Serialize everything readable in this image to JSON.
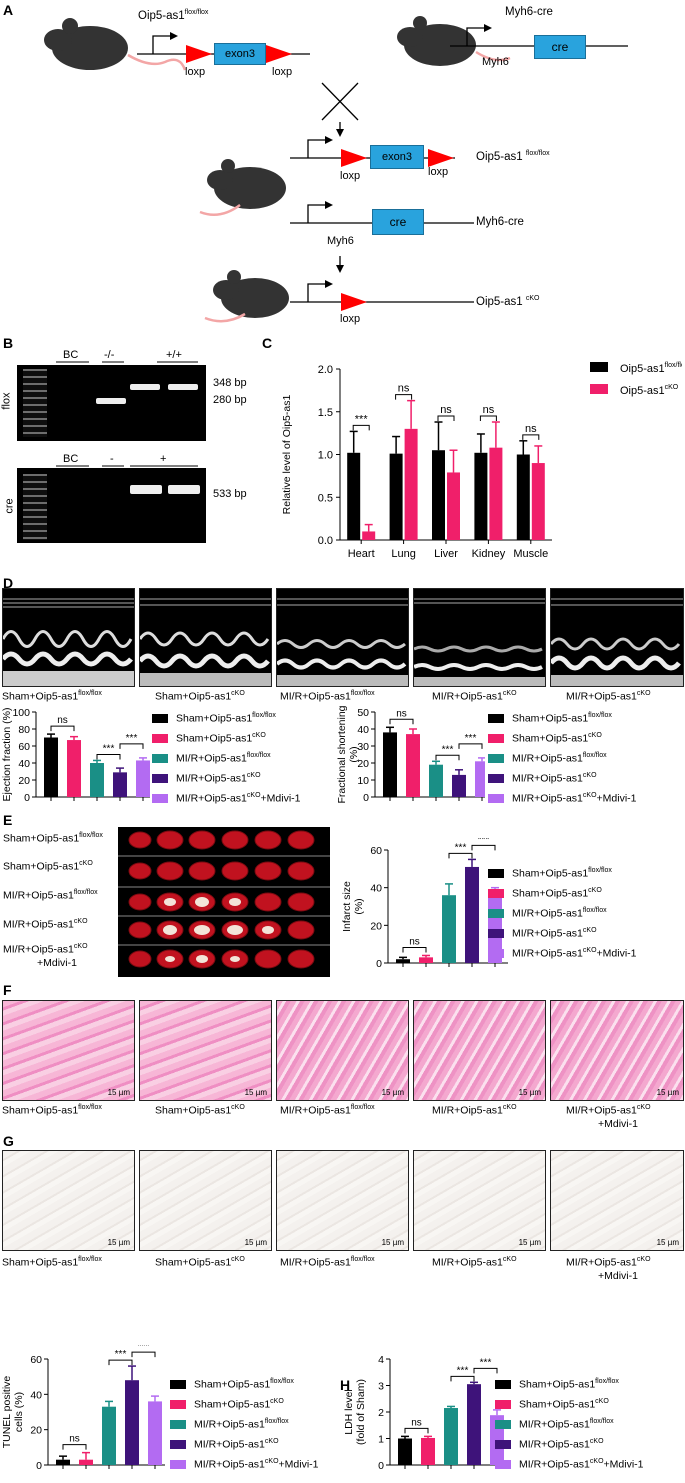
{
  "panels": {
    "A": "A",
    "B": "B",
    "C": "C",
    "D": "D",
    "E": "E",
    "F": "F",
    "G": "G",
    "H": "H"
  },
  "panelA": {
    "flox_title": "Oip5-as1",
    "flox_sup": "flox/flox",
    "cre_title": "Myh6-cre",
    "exon": "exon3",
    "loxp": "loxp",
    "cre": "cre",
    "myh6": "Myh6",
    "row1_label": "Oip5-as1",
    "row1_sup": "flox/flox",
    "row2_label": "Myh6-cre",
    "row3_label": "Oip5-as1",
    "row3_sup": "cKO"
  },
  "panelB": {
    "flox_lanes": [
      "BC",
      "-/-",
      "+/+"
    ],
    "cre_lanes": [
      "BC",
      "-",
      "+"
    ],
    "flox_label": "flox",
    "cre_label": "cre",
    "bands_flox": [
      "348 bp",
      "280 bp"
    ],
    "bands_cre": [
      "533 bp"
    ]
  },
  "legend": {
    "sham_flox": "Sham+Oip5-as1",
    "sham_cko": "Sham+Oip5-as1",
    "mir_flox": "MI/R+Oip5-as1",
    "mir_cko": "MI/R+Oip5-as1",
    "mir_cko_m": "MI/R+Oip5-as1",
    "sup_flox": "flox/flox",
    "sup_cko": "cKO",
    "mdivi": "+Mdivi-1"
  },
  "colors": {
    "black": "#000000",
    "pink": "#f01f6a",
    "teal": "#1a8f86",
    "purple": "#3e137a",
    "violet": "#b36bf2"
  },
  "chart_data": [
    {
      "type": "bar",
      "panel": "C",
      "title": "",
      "ylabel": "Relative level of Oip5-as1",
      "categories": [
        "Heart",
        "Lung",
        "Liver",
        "Kidney",
        "Muscle"
      ],
      "ylim": [
        0,
        2.0
      ],
      "yticks": [
        "0.0",
        "0.5",
        "1.0",
        "1.5",
        "2.0"
      ],
      "series": [
        {
          "name": "Oip5-as1",
          "sup": "flox/flox",
          "values": [
            1.02,
            1.01,
            1.05,
            1.02,
            1.0
          ],
          "errors": [
            0.25,
            0.2,
            0.33,
            0.22,
            0.16
          ],
          "color": "#000000"
        },
        {
          "name": "Oip5-as1",
          "sup": "cKO",
          "values": [
            0.1,
            1.3,
            0.79,
            1.08,
            0.9
          ],
          "errors": [
            0.08,
            0.33,
            0.26,
            0.3,
            0.2
          ],
          "color": "#f01f6a"
        }
      ],
      "annotations": [
        "***",
        "ns",
        "ns",
        "ns",
        "ns"
      ]
    },
    {
      "type": "bar",
      "panel": "D-left",
      "ylabel": "Ejection fraction (%)",
      "ylim": [
        0,
        100
      ],
      "yticks": [
        "0",
        "20",
        "40",
        "60",
        "80",
        "100"
      ],
      "values": [
        70,
        67,
        40,
        29,
        43
      ],
      "errors": [
        4,
        4,
        3,
        5,
        3
      ],
      "annotations": [
        "ns",
        "***",
        "***"
      ]
    },
    {
      "type": "bar",
      "panel": "D-right",
      "ylabel": "Fractional shortening (%)",
      "ylim": [
        0,
        50
      ],
      "yticks": [
        "0",
        "10",
        "20",
        "30",
        "40",
        "50"
      ],
      "values": [
        38,
        37,
        19,
        13,
        21
      ],
      "errors": [
        3,
        3,
        2,
        3,
        2
      ],
      "annotations": [
        "ns",
        "***",
        "***"
      ]
    },
    {
      "type": "bar",
      "panel": "E",
      "ylabel": "Infarct size (%)",
      "ylim": [
        0,
        60
      ],
      "yticks": [
        "0",
        "20",
        "40",
        "60"
      ],
      "values": [
        2,
        3,
        36,
        51,
        36
      ],
      "errors": [
        1,
        1,
        6,
        4,
        4
      ],
      "annotations": [
        "ns",
        "***",
        "***"
      ]
    },
    {
      "type": "bar",
      "panel": "G",
      "ylabel": "TUNEL positive cells (%)",
      "ylim": [
        0,
        60
      ],
      "yticks": [
        "0",
        "20",
        "40",
        "60"
      ],
      "values": [
        3,
        3,
        33,
        48,
        36
      ],
      "errors": [
        2,
        4,
        3,
        8,
        3
      ],
      "annotations": [
        "ns",
        "***",
        "***"
      ]
    },
    {
      "type": "bar",
      "panel": "H",
      "ylabel": "LDH level (fold of Sham)",
      "ylim": [
        0,
        4
      ],
      "yticks": [
        "0",
        "1",
        "2",
        "3",
        "4"
      ],
      "values": [
        1.0,
        1.02,
        2.15,
        3.05,
        1.88
      ],
      "errors": [
        0.08,
        0.06,
        0.06,
        0.07,
        0.2
      ],
      "annotations": [
        "ns",
        "***",
        "***"
      ]
    }
  ],
  "scalebar": "15 µm"
}
